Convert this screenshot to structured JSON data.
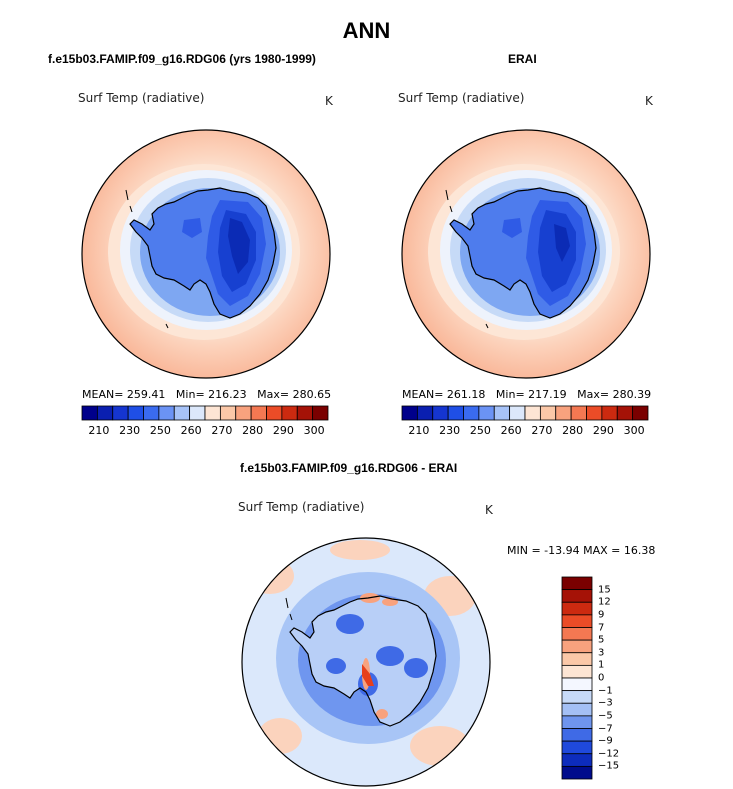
{
  "title": "ANN",
  "panels": [
    {
      "title": "f.e15b03.FAMIP.f09_g16.RDG06 (yrs 1980-1999)",
      "variable": "Surf Temp (radiative)",
      "units": "K",
      "stats": {
        "mean": "259.41",
        "min": "216.23",
        "max": "280.65"
      }
    },
    {
      "title": "ERAI",
      "variable": "Surf Temp (radiative)",
      "units": "K",
      "stats": {
        "mean": "261.18",
        "min": "217.19",
        "max": "280.39"
      }
    },
    {
      "title": "f.e15b03.FAMIP.f09_g16.RDG06 - ERAI",
      "variable": "Surf Temp (radiative)",
      "units": "K",
      "minmax": "MIN = -13.94 MAX =  16.38"
    }
  ],
  "stat_labels": {
    "mean": "MEAN=",
    "min": "Min=",
    "max": "Max="
  },
  "abs_colorbar": {
    "colors": [
      "#00008b",
      "#0a1fb0",
      "#1535d0",
      "#1f4fe6",
      "#3a6bf0",
      "#6b93f5",
      "#a7c3f8",
      "#dce8fb",
      "#fde5d4",
      "#fbc8a8",
      "#f8a27e",
      "#f47852",
      "#eb4c27",
      "#cc2a10",
      "#a51207",
      "#7a0000"
    ],
    "labels": [
      "210",
      "230",
      "250",
      "260",
      "270",
      "280",
      "290",
      "300"
    ]
  },
  "diff_colorbar": {
    "colors_top_to_bottom": [
      "#7a0000",
      "#a51207",
      "#cc2a10",
      "#eb4c27",
      "#f47852",
      "#f8a27e",
      "#fbc8a8",
      "#fde5d4",
      "#f4f7ff",
      "#c7daf8",
      "#a4c0f5",
      "#6f95ee",
      "#3f6ae6",
      "#1f49dc",
      "#0d2cbd",
      "#000c8c"
    ],
    "labels": [
      "15",
      "12",
      "9",
      "7",
      "5",
      "3",
      "1",
      "0",
      "−1",
      "−3",
      "−5",
      "−7",
      "−9",
      "−12",
      "−15"
    ]
  },
  "map_colors": {
    "ocean_far": "#f9b394",
    "ocean_mid": "#fcd2bb",
    "ocean_near": "#fde6d6",
    "ice_edge": "#c6daf7",
    "ice_mid": "#7ea7f2",
    "land_edge": "#4e7ced",
    "land_mid": "#2f5be6",
    "land_core": "#1740d0",
    "land_deep": "#0b2bb5",
    "diff_bg": "#dbe8fb",
    "diff_ring": "#a8c5f6",
    "diff_mid": "#6f96ef",
    "diff_strong": "#3f6ae6",
    "diff_warm": "#fbd3bd",
    "diff_hot": "#e6401c",
    "coast": "#000000"
  }
}
